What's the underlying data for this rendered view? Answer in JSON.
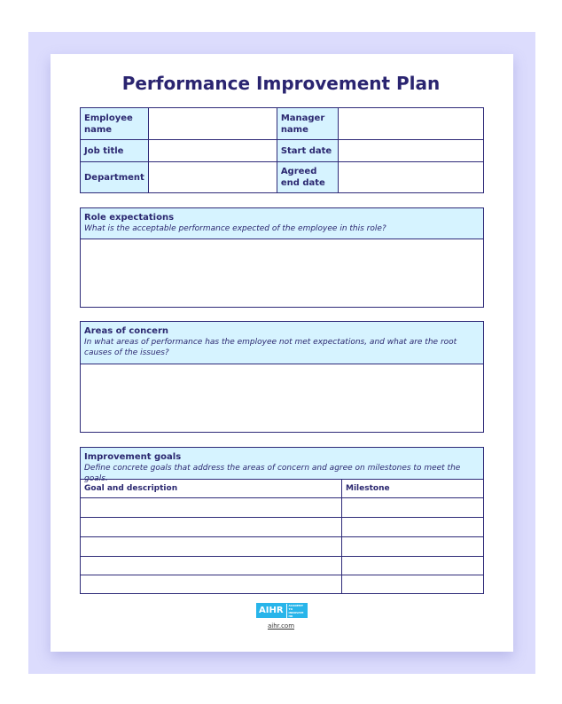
{
  "title": "Performance Improvement Plan",
  "info": {
    "employee_name": "Employee name",
    "manager_name": "Manager name",
    "job_title": "Job title",
    "start_date": "Start date",
    "department": "Department",
    "agreed_end_date": "Agreed end date"
  },
  "role": {
    "title": "Role expectations",
    "prompt": "What is the acceptable performance expected of the employee in this role?"
  },
  "concern": {
    "title": "Areas of concern",
    "prompt": "In what areas of performance has the employee not met expectations, and what are the root causes of the issues?"
  },
  "goals": {
    "title": "Improvement goals",
    "prompt": "Define concrete goals that address the areas of concern and agree on milestones to meet the goals.",
    "col1": "Goal and description",
    "col2": "Milestone"
  },
  "footer": {
    "logo": "AIHR",
    "logo_tagline": "ACADEMY TO INNOVATE HR",
    "site": "aihr.com"
  },
  "colors": {
    "background": "#dcdcfd",
    "header_fill": "#d6f3ff",
    "border": "#2e2a78",
    "logo": "#28b5ea"
  }
}
